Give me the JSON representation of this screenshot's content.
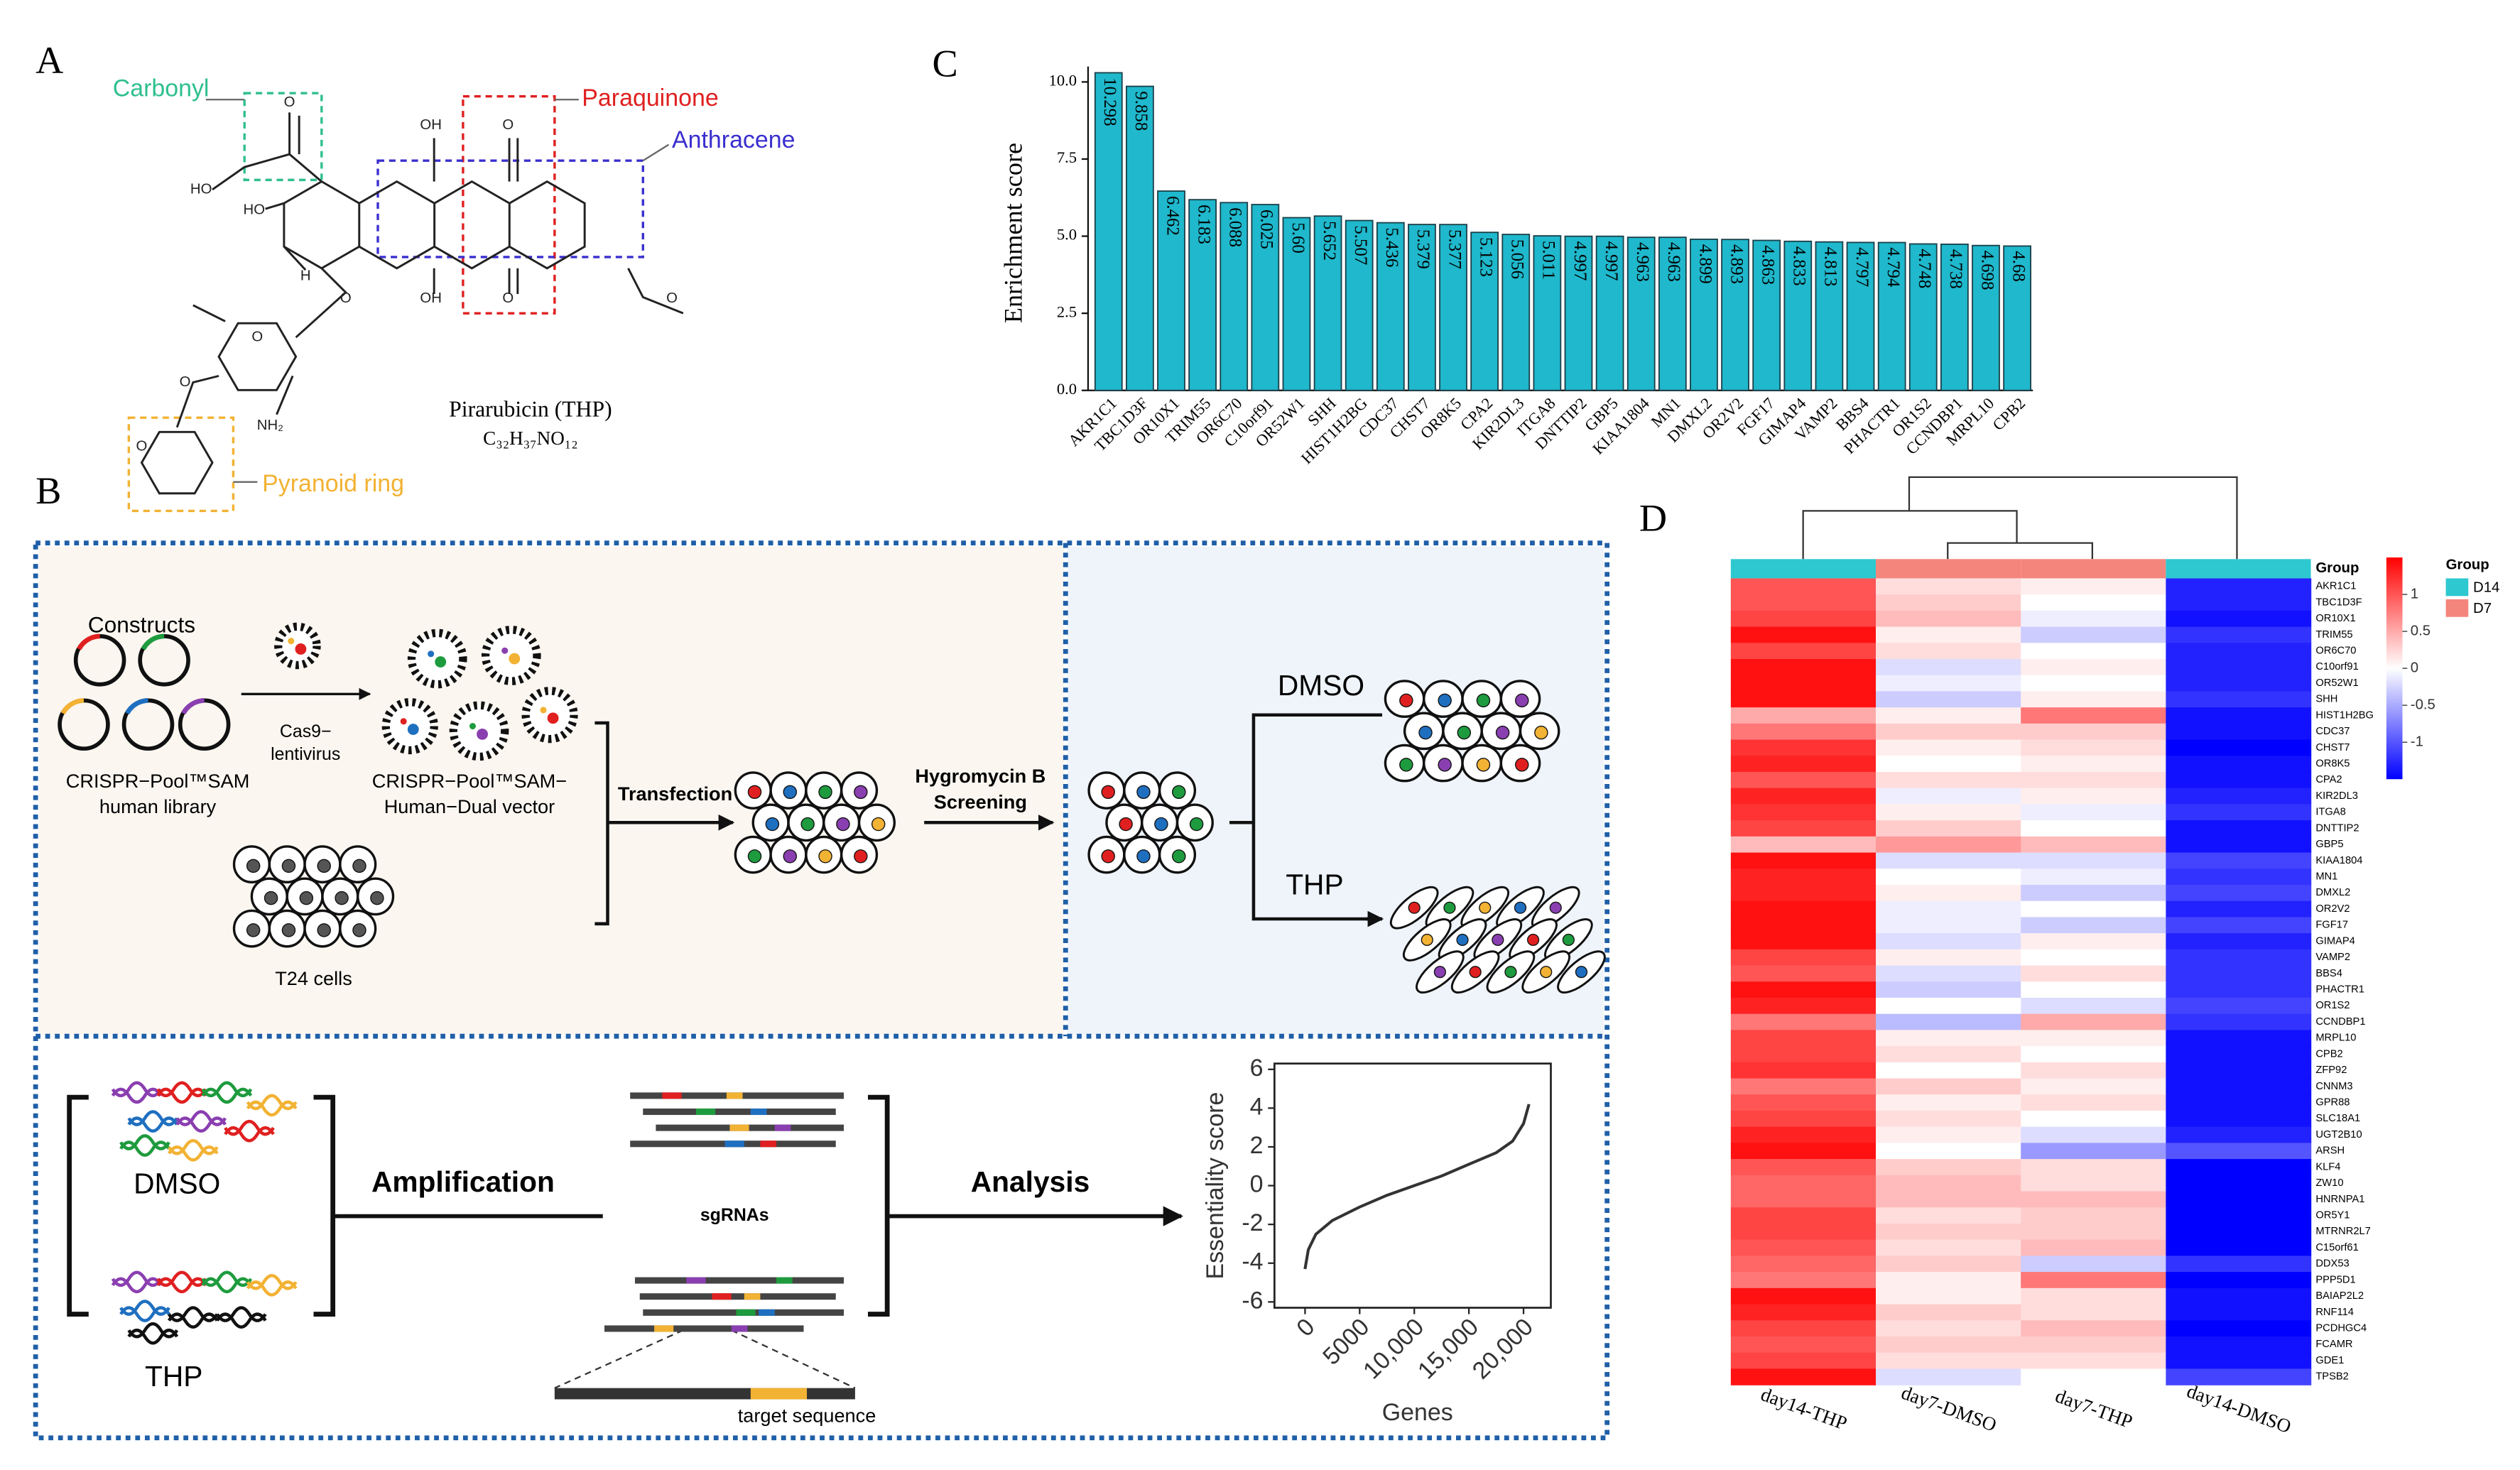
{
  "panel_labels": [
    "A",
    "B",
    "C",
    "D"
  ],
  "panel_a": {
    "highlights": [
      "Carbonyl",
      "Paraquinone",
      "Anthracene",
      "Pyranoid ring"
    ],
    "compound": "Pirarubicin (THP)",
    "formula": "C₃₂H₃₇NO₁₂",
    "atom_labels": [
      "O",
      "HO",
      "HO",
      "OH",
      "O",
      "OH",
      "O",
      "H",
      "O",
      "O",
      "O",
      "NH₂",
      "O",
      "O"
    ]
  },
  "panel_b": {
    "constructs": "Constructs",
    "library": [
      "CRISPR−Pool™SAM",
      "human library"
    ],
    "virus": [
      "Cas9−",
      "lentivirus"
    ],
    "vector": [
      "CRISPR−Pool™SAM−",
      "Human−Dual vector"
    ],
    "t24": "T24 cells",
    "transfection": "Transfection",
    "hygromycin": [
      "Hygromycin B",
      "Screening"
    ],
    "dmso_top": "DMSO",
    "thp_top": "THP",
    "dmso_bottom": "DMSO",
    "thp_bottom": "THP",
    "amplification": "Amplification",
    "sgrnas": "sgRNAs",
    "analysis": "Analysis",
    "target": "target sequence"
  },
  "chart_data": [
    {
      "type": "bar",
      "ylabel": "Enrichment score",
      "color": "#1fb8cc",
      "categories": [
        "AKR1C1",
        "TBC1D3F",
        "OR10X1",
        "TRIM55",
        "OR6C70",
        "C10orf91",
        "OR52W1",
        "SHH",
        "HIST1H2BG",
        "CDC37",
        "CHST7",
        "OR8K5",
        "CPA2",
        "KIR2DL3",
        "ITGA8",
        "DNTTIP2",
        "GBP5",
        "KIAA1804",
        "MN1",
        "DMXL2",
        "OR2V2",
        "FGF17",
        "GIMAP4",
        "VAMP2",
        "BBS4",
        "PHACTR1",
        "OR1S2",
        "CCNDBP1",
        "MRPL10",
        "CPB2"
      ],
      "values": [
        10.298,
        9.858,
        6.462,
        6.183,
        6.088,
        6.025,
        5.6,
        5.652,
        5.507,
        5.436,
        5.379,
        5.377,
        5.123,
        5.056,
        5.011,
        4.997,
        4.997,
        4.963,
        4.963,
        4.899,
        4.893,
        4.863,
        4.833,
        4.813,
        4.797,
        4.794,
        4.748,
        4.738,
        4.698,
        4.68
      ],
      "value_labels": [
        "10.298",
        "9.858",
        "6.462",
        "6.183",
        "6.088",
        "6.025",
        "5.60",
        "5.652",
        "5.507",
        "5.436",
        "5.379",
        "5.377",
        "5.123",
        "5.056",
        "5.011",
        "4.997",
        "4.997",
        "4.963",
        "4.963",
        "4.899",
        "4.893",
        "4.863",
        "4.833",
        "4.813",
        "4.797",
        "4.794",
        "4.748",
        "4.738",
        "4.698",
        "4.68"
      ],
      "ylim": [
        0,
        10.5
      ],
      "yticks": [
        {
          "value": 0,
          "label": "0.0"
        },
        2.5,
        {
          "value": 5,
          "label": "5.0"
        },
        7.5,
        {
          "value": 10,
          "label": "10.0"
        }
      ]
    },
    {
      "type": "line",
      "xlabel": "Genes",
      "ylabel": "Essentiality score",
      "color": "#333333",
      "x": [
        0,
        300,
        1000,
        2500,
        5000,
        7500,
        10000,
        12500,
        15000,
        17500,
        19000,
        20000,
        20500
      ],
      "values": [
        -4.3,
        -3.3,
        -2.5,
        -1.8,
        -1.1,
        -0.5,
        0,
        0.5,
        1.1,
        1.7,
        2.3,
        3.2,
        4.2
      ],
      "xlim": [
        -2800,
        22500
      ],
      "ylim": [
        -6.3,
        6.3
      ],
      "xticks": [
        0,
        5000,
        {
          "value": 10000,
          "label": "10,000"
        },
        {
          "value": 15000,
          "label": "15,000"
        },
        {
          "value": 20000,
          "label": "20,000"
        }
      ],
      "yticks": [
        6,
        4,
        2,
        0,
        -2,
        -4,
        -6
      ]
    },
    {
      "type": "heatmap",
      "group_label": "Group",
      "legend_title": "Group",
      "groups": [
        {
          "name": "D14",
          "color": "#2ec8d0"
        },
        {
          "name": "D7",
          "color": "#f4857c"
        }
      ],
      "column_groups": [
        "D14",
        "D7",
        "D7",
        "D14"
      ],
      "columns": [
        "day14-THP",
        "day7-DMSO",
        "day7-THP",
        "day14-DMSO"
      ],
      "rows": [
        "AKR1C1",
        "TBC1D3F",
        "OR10X1",
        "TRIM55",
        "OR6C70",
        "C10orf91",
        "OR52W1",
        "SHH",
        "HIST1H2BG",
        "CDC37",
        "CHST7",
        "OR8K5",
        "CPA2",
        "KIR2DL3",
        "ITGA8",
        "DNTTIP2",
        "GBP5",
        "KIAA1804",
        "MN1",
        "DMXL2",
        "OR2V2",
        "FGF17",
        "GIMAP4",
        "VAMP2",
        "BBS4",
        "PHACTR1",
        "OR1S2",
        "CCNDBP1",
        "MRPL10",
        "CPB2",
        "ZFP92",
        "CNNM3",
        "GPR88",
        "SLC18A1",
        "UGT2B10",
        "ARSH",
        "KLF4",
        "ZW10",
        "HNRNPA1",
        "OR5Y1",
        "MTRNR2L7",
        "C15orf61",
        "DDX53",
        "PPP5D1",
        "BAIAP2L2",
        "RNF114",
        "PCDHGC4",
        "FCAMR",
        "GDE1",
        "TPSB2"
      ],
      "values": [
        [
          1.0,
          0.2,
          0.1,
          -1.3
        ],
        [
          1.0,
          0.3,
          0.0,
          -1.3
        ],
        [
          1.1,
          0.4,
          -0.1,
          -1.4
        ],
        [
          1.4,
          0.1,
          -0.3,
          -1.2
        ],
        [
          1.1,
          0.2,
          0.0,
          -1.3
        ],
        [
          1.4,
          -0.2,
          0.1,
          -1.3
        ],
        [
          1.4,
          -0.1,
          0.0,
          -1.3
        ],
        [
          1.4,
          -0.3,
          0.1,
          -1.2
        ],
        [
          0.5,
          0.1,
          0.8,
          -1.4
        ],
        [
          0.8,
          0.3,
          0.3,
          -1.4
        ],
        [
          1.2,
          0.1,
          0.2,
          -1.5
        ],
        [
          1.3,
          0.0,
          0.1,
          -1.4
        ],
        [
          1.0,
          0.2,
          0.2,
          -1.4
        ],
        [
          1.3,
          -0.1,
          0.1,
          -1.3
        ],
        [
          1.2,
          0.1,
          -0.1,
          -1.2
        ],
        [
          1.1,
          0.3,
          0.0,
          -1.4
        ],
        [
          0.4,
          0.6,
          0.4,
          -1.4
        ],
        [
          1.4,
          -0.2,
          -0.2,
          -1.1
        ],
        [
          1.3,
          0.0,
          -0.1,
          -1.2
        ],
        [
          1.3,
          0.1,
          -0.3,
          -1.1
        ],
        [
          1.4,
          -0.1,
          0.0,
          -1.3
        ],
        [
          1.4,
          -0.1,
          -0.3,
          -1.1
        ],
        [
          1.4,
          -0.2,
          0.1,
          -1.3
        ],
        [
          1.1,
          0.1,
          0.0,
          -1.2
        ],
        [
          1.0,
          -0.2,
          0.2,
          -1.2
        ],
        [
          1.4,
          -0.3,
          0.0,
          -1.2
        ],
        [
          1.3,
          0.0,
          -0.2,
          -1.1
        ],
        [
          0.8,
          -0.4,
          0.5,
          -1.2
        ],
        [
          1.1,
          0.1,
          0.1,
          -1.4
        ],
        [
          1.1,
          0.2,
          0.0,
          -1.4
        ],
        [
          1.2,
          0.0,
          0.2,
          -1.4
        ],
        [
          0.8,
          0.3,
          0.1,
          -1.4
        ],
        [
          1.0,
          0.1,
          0.2,
          -1.4
        ],
        [
          1.1,
          0.2,
          0.0,
          -1.4
        ],
        [
          1.3,
          0.1,
          -0.2,
          -1.3
        ],
        [
          1.4,
          0.0,
          -0.6,
          -1.0
        ],
        [
          1.0,
          0.3,
          0.2,
          -1.5
        ],
        [
          0.9,
          0.4,
          0.2,
          -1.5
        ],
        [
          0.9,
          0.4,
          0.4,
          -1.5
        ],
        [
          1.1,
          0.2,
          0.3,
          -1.5
        ],
        [
          1.1,
          0.3,
          0.3,
          -1.5
        ],
        [
          1.0,
          0.2,
          0.4,
          -1.5
        ],
        [
          0.9,
          0.3,
          -0.3,
          -1.2
        ],
        [
          0.8,
          0.1,
          0.8,
          -1.5
        ],
        [
          1.4,
          0.1,
          0.2,
          -1.4
        ],
        [
          1.3,
          0.3,
          0.2,
          -1.4
        ],
        [
          1.1,
          0.2,
          0.4,
          -1.5
        ],
        [
          1.0,
          0.3,
          0.3,
          -1.4
        ],
        [
          1.1,
          0.2,
          0.2,
          -1.4
        ],
        [
          1.4,
          -0.2,
          0.0,
          -1.1
        ]
      ],
      "clim": [
        -1.5,
        1.5
      ],
      "colorbar_ticks": [
        1,
        0.5,
        0,
        -0.5,
        -1
      ]
    }
  ]
}
